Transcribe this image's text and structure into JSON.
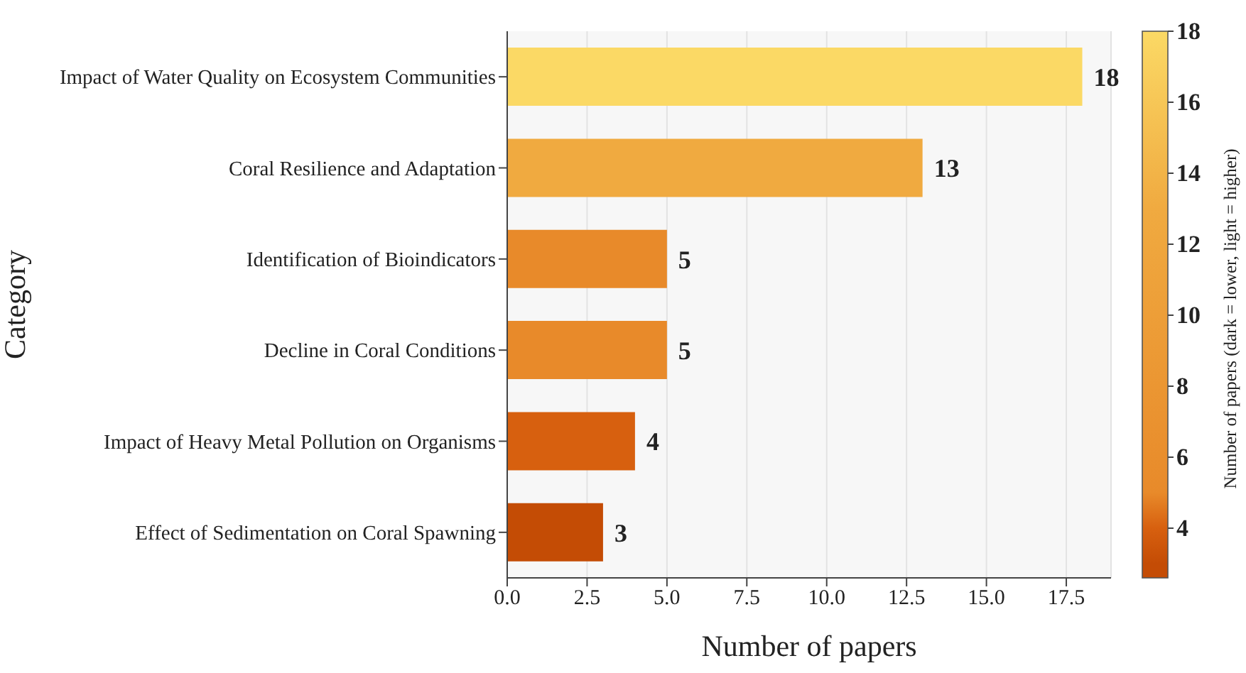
{
  "chart_data": {
    "type": "bar",
    "orientation": "horizontal",
    "xlabel": "Number of papers",
    "ylabel": "Category",
    "clabel": "Number of papers (dark = lower, light = higher)",
    "categories": [
      "Impact of Water Quality on Ecosystem Communities",
      "Coral Resilience and Adaptation",
      "Identification of Bioindicators",
      "Decline in Coral Conditions",
      "Impact of Heavy Metal Pollution on Organisms",
      "Effect of Sedimentation on Coral Spawning"
    ],
    "values": [
      18,
      13,
      5,
      5,
      4,
      3
    ],
    "colors": [
      "#fbd965",
      "#f0aa40",
      "#e88a2a",
      "#e88a2a",
      "#d7600f",
      "#c44c05"
    ],
    "xlim": [
      0,
      18.9
    ],
    "xticks": [
      {
        "value": 0,
        "label": "0.0"
      },
      {
        "value": 2.5,
        "label": "2.5"
      },
      {
        "value": 5,
        "label": "5.0"
      },
      {
        "value": 7.5,
        "label": "7.5"
      },
      {
        "value": 10,
        "label": "10.0"
      },
      {
        "value": 12.5,
        "label": "12.5"
      },
      {
        "value": 15,
        "label": "15.0"
      },
      {
        "value": 17.5,
        "label": "17.5"
      }
    ],
    "clim": [
      2.6,
      18
    ],
    "cticks": [
      4,
      6,
      8,
      10,
      12,
      14,
      16,
      18
    ],
    "grid": "x",
    "data_labels": true
  }
}
